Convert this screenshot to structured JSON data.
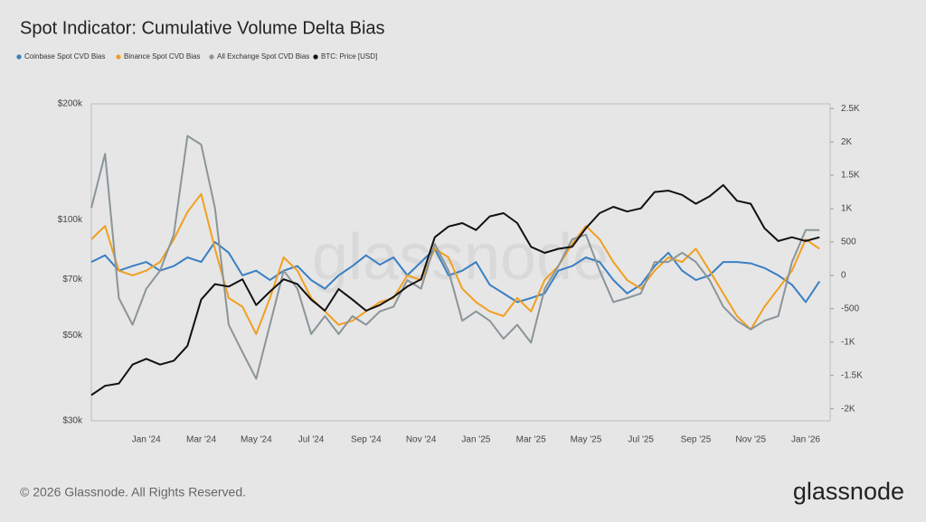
{
  "chart_data": {
    "type": "line",
    "title": "Spot Indicator: Cumulative Volume Delta Bias",
    "footer": "© 2026 Glassnode. All Rights Reserved.",
    "brand": "glassnode",
    "watermark": "glassnode",
    "categories": [
      null,
      null,
      null,
      null,
      "Jan '24",
      null,
      null,
      null,
      "Mar '24",
      null,
      null,
      null,
      "May '24",
      null,
      null,
      null,
      "Jul '24",
      null,
      null,
      null,
      "Sep '24",
      null,
      null,
      null,
      "Nov '24",
      null,
      null,
      null,
      "Jan '25",
      null,
      null,
      null,
      "Mar '25",
      null,
      null,
      null,
      "May '25",
      null,
      null,
      null,
      "Jul '25",
      null,
      null,
      null,
      "Sep '25",
      null,
      null,
      null,
      "Nov '25",
      null,
      null,
      null,
      "Jan '26",
      null
    ],
    "ylim": [
      30000,
      200000
    ],
    "ylog": true,
    "yticks": [
      {
        "value": 30000,
        "label": "$30k"
      },
      {
        "value": 50000,
        "label": "$50k"
      },
      {
        "value": 70000,
        "label": "$70k"
      },
      {
        "value": 100000,
        "label": "$100k"
      },
      {
        "value": 200000,
        "label": "$200k"
      }
    ],
    "y2lim": [
      -2180,
      2570
    ],
    "y2ticks": [
      {
        "value": -2000,
        "label": "-2K"
      },
      {
        "value": -1500,
        "label": "-1.5K"
      },
      {
        "value": -1000,
        "label": "-1K"
      },
      -500,
      0,
      500,
      {
        "value": 1000,
        "label": "1K"
      },
      {
        "value": 1500,
        "label": "1.5K"
      },
      {
        "value": 2000,
        "label": "2K"
      },
      {
        "value": 2500,
        "label": "2.5K"
      }
    ],
    "grid": false,
    "series": [
      {
        "name": "Coinbase Spot CVD Bias",
        "color": "#3a7fc3",
        "axis": "y2",
        "values": [
          200,
          300,
          70,
          140,
          200,
          70,
          140,
          270,
          200,
          500,
          340,
          0,
          70,
          -70,
          70,
          140,
          -70,
          -200,
          0,
          140,
          300,
          160,
          270,
          0,
          200,
          400,
          0,
          70,
          200,
          -140,
          -270,
          -400,
          -340,
          -270,
          70,
          140,
          270,
          200,
          -70,
          -270,
          -140,
          140,
          340,
          70,
          -70,
          0,
          200,
          200,
          180,
          110,
          0,
          -140,
          -400,
          -90
        ]
      },
      {
        "name": "Binance Spot CVD Bias",
        "color": "#f0a020",
        "axis": "y2",
        "values": [
          540,
          740,
          70,
          0,
          70,
          200,
          540,
          950,
          1220,
          400,
          -340,
          -470,
          -880,
          -340,
          270,
          70,
          -340,
          -540,
          -740,
          -680,
          -540,
          -400,
          -340,
          0,
          -70,
          400,
          270,
          -200,
          -400,
          -540,
          -610,
          -340,
          -540,
          -70,
          140,
          470,
          740,
          540,
          200,
          -70,
          -200,
          70,
          270,
          200,
          400,
          70,
          -270,
          -610,
          -810,
          -470,
          -200,
          70,
          540,
          400
        ]
      },
      {
        "name": "All Exchange Spot CVD Bias",
        "color": "#8b9498",
        "axis": "y2",
        "values": [
          1010,
          1820,
          -340,
          -740,
          -200,
          70,
          610,
          2090,
          1960,
          1010,
          -740,
          -1150,
          -1550,
          -740,
          70,
          -200,
          -880,
          -610,
          -880,
          -610,
          -740,
          -540,
          -470,
          -70,
          -200,
          470,
          70,
          -680,
          -540,
          -680,
          -950,
          -740,
          -1010,
          -200,
          140,
          540,
          610,
          70,
          -400,
          -340,
          -270,
          200,
          200,
          340,
          200,
          -70,
          -470,
          -680,
          -810,
          -680,
          -610,
          200,
          680,
          680
        ]
      },
      {
        "name": "BTC: Price [USD]",
        "color": "#111111",
        "axis": "y",
        "values": [
          35000,
          37000,
          37500,
          42000,
          43500,
          42000,
          43000,
          47000,
          62000,
          68000,
          67000,
          70000,
          60000,
          65000,
          70000,
          68000,
          62000,
          58000,
          66000,
          62000,
          58000,
          60000,
          63000,
          67000,
          70000,
          90000,
          96000,
          98000,
          94000,
          102000,
          104000,
          98000,
          85000,
          82000,
          84000,
          85000,
          95000,
          104000,
          108000,
          105000,
          107000,
          118000,
          119000,
          116000,
          110000,
          115000,
          123000,
          112000,
          110000,
          95000,
          88000,
          90000,
          88000,
          90000
        ]
      }
    ]
  }
}
